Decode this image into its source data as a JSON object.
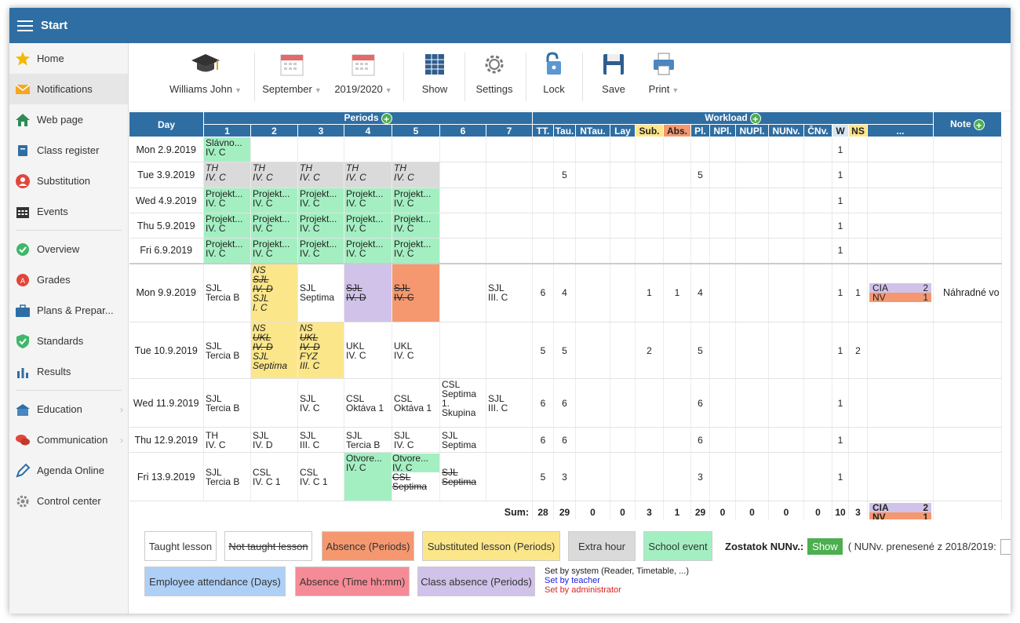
{
  "app": {
    "title": "Start"
  },
  "sidebar": [
    {
      "label": "Home",
      "icon": "star-icon"
    },
    {
      "label": "Notifications",
      "icon": "envelope-icon"
    },
    {
      "label": "Web page",
      "icon": "house-icon"
    },
    {
      "label": "Class register",
      "icon": "book-icon"
    },
    {
      "label": "Substitution",
      "icon": "person-swap-icon"
    },
    {
      "label": "Events",
      "icon": "calendar-icon"
    },
    {
      "label": "Overview",
      "icon": "check-circle-icon"
    },
    {
      "label": "Grades",
      "icon": "grade-circle-icon"
    },
    {
      "label": "Plans & Prepar...",
      "icon": "briefcase-icon"
    },
    {
      "label": "Standards",
      "icon": "shield-check-icon"
    },
    {
      "label": "Results",
      "icon": "bar-chart-icon"
    },
    {
      "label": "Education",
      "icon": "school-icon"
    },
    {
      "label": "Communication",
      "icon": "chat-icon"
    },
    {
      "label": "Agenda Online",
      "icon": "pen-icon"
    },
    {
      "label": "Control center",
      "icon": "gear-icon"
    }
  ],
  "toolbar": {
    "teacher": "Williams John",
    "month": "September",
    "year": "2019/2020",
    "show": "Show",
    "settings": "Settings",
    "lock": "Lock",
    "save": "Save",
    "print": "Print"
  },
  "headers": {
    "day": "Day",
    "periods": "Periods",
    "workload": "Workload",
    "note": "Note",
    "period_numbers": [
      "1",
      "2",
      "3",
      "4",
      "5",
      "6",
      "7"
    ],
    "workload_cols": [
      "TT.",
      "Tau.",
      "NTau.",
      "Lay",
      "Sub.",
      "Abs.",
      "Pl.",
      "NPl.",
      "NUPl.",
      "NUNv.",
      "ČNv.",
      "W",
      "NS",
      "..."
    ]
  },
  "rows": [
    {
      "day": "Mon 2.9.2019",
      "periods": [
        {
          "lines": [
            "Slávno...",
            "IV. C"
          ],
          "style": "ev"
        },
        {},
        {},
        {},
        {},
        {},
        {}
      ],
      "w": [
        "",
        "",
        "",
        "",
        "",
        "",
        "",
        "",
        "",
        "",
        "",
        "1",
        "",
        ""
      ],
      "note": ""
    },
    {
      "day": "Tue 3.9.2019",
      "periods": [
        {
          "lines": [
            "TH",
            "IV. C"
          ],
          "style": "xh",
          "italic": true
        },
        {
          "lines": [
            "TH",
            "IV. C"
          ],
          "style": "xh",
          "italic": true
        },
        {
          "lines": [
            "TH",
            "IV. C"
          ],
          "style": "xh",
          "italic": true
        },
        {
          "lines": [
            "TH",
            "IV. C"
          ],
          "style": "xh",
          "italic": true
        },
        {
          "lines": [
            "TH",
            "IV. C"
          ],
          "style": "xh",
          "italic": true
        },
        {},
        {}
      ],
      "w": [
        "",
        "5",
        "",
        "",
        "",
        "",
        "5",
        "",
        "",
        "",
        "",
        "1",
        "",
        ""
      ],
      "note": ""
    },
    {
      "day": "Wed 4.9.2019",
      "periods": [
        {
          "lines": [
            "Projekt...",
            "IV. C"
          ],
          "style": "ev"
        },
        {
          "lines": [
            "Projekt...",
            "IV. C"
          ],
          "style": "ev"
        },
        {
          "lines": [
            "Projekt...",
            "IV. C"
          ],
          "style": "ev"
        },
        {
          "lines": [
            "Projekt...",
            "IV. C"
          ],
          "style": "ev"
        },
        {
          "lines": [
            "Projekt...",
            "IV. C"
          ],
          "style": "ev"
        },
        {},
        {}
      ],
      "w": [
        "",
        "",
        "",
        "",
        "",
        "",
        "",
        "",
        "",
        "",
        "",
        "1",
        "",
        ""
      ],
      "note": ""
    },
    {
      "day": "Thu 5.9.2019",
      "periods": [
        {
          "lines": [
            "Projekt...",
            "IV. C"
          ],
          "style": "ev"
        },
        {
          "lines": [
            "Projekt...",
            "IV. C"
          ],
          "style": "ev"
        },
        {
          "lines": [
            "Projekt...",
            "IV. C"
          ],
          "style": "ev"
        },
        {
          "lines": [
            "Projekt...",
            "IV. C"
          ],
          "style": "ev"
        },
        {
          "lines": [
            "Projekt...",
            "IV. C"
          ],
          "style": "ev"
        },
        {},
        {}
      ],
      "w": [
        "",
        "",
        "",
        "",
        "",
        "",
        "",
        "",
        "",
        "",
        "",
        "1",
        "",
        ""
      ],
      "note": ""
    },
    {
      "day": "Fri 6.9.2019",
      "periods": [
        {
          "lines": [
            "Projekt...",
            "IV. C"
          ],
          "style": "ev"
        },
        {
          "lines": [
            "Projekt...",
            "IV. C"
          ],
          "style": "ev"
        },
        {
          "lines": [
            "Projekt...",
            "IV. C"
          ],
          "style": "ev"
        },
        {
          "lines": [
            "Projekt...",
            "IV. C"
          ],
          "style": "ev"
        },
        {
          "lines": [
            "Projekt...",
            "IV. C"
          ],
          "style": "ev"
        },
        {},
        {}
      ],
      "w": [
        "",
        "",
        "",
        "",
        "",
        "",
        "",
        "",
        "",
        "",
        "",
        "1",
        "",
        ""
      ],
      "note": ""
    },
    {
      "day": "Mon 9.9.2019",
      "periods": [
        {
          "lines": [
            "SJL",
            "Tercia B"
          ]
        },
        {
          "lines": [
            "NS",
            "SJL",
            "IV. D",
            "SJL",
            "I. C"
          ],
          "style": "sub",
          "italic": true,
          "strike": [
            1,
            2
          ]
        },
        {
          "lines": [
            "SJL",
            "Septima"
          ]
        },
        {
          "lines": [
            "SJL",
            "IV. D"
          ],
          "style": "ca",
          "strike": [
            0,
            1
          ]
        },
        {
          "lines": [
            "SJL",
            "IV. C"
          ],
          "style": "ab",
          "strike": [
            0,
            1
          ]
        },
        {},
        {
          "lines": [
            "SJL",
            "III. C"
          ]
        }
      ],
      "w": [
        "6",
        "4",
        "",
        "",
        "1",
        "1",
        "4",
        "",
        "",
        "",
        "",
        "1",
        "1",
        "cia"
      ],
      "note": "Náhradné vo"
    },
    {
      "day": "Tue 10.9.2019",
      "periods": [
        {
          "lines": [
            "SJL",
            "Tercia B"
          ]
        },
        {
          "lines": [
            "NS",
            "UKL",
            "IV. D",
            "SJL",
            "Septima"
          ],
          "style": "sub",
          "italic": true,
          "strike": [
            1,
            2
          ]
        },
        {
          "lines": [
            "NS",
            "UKL",
            "IV. D",
            "FYZ",
            "III. C"
          ],
          "style": "sub",
          "italic": true,
          "strike": [
            1,
            2
          ]
        },
        {
          "lines": [
            "UKL",
            "IV. C"
          ]
        },
        {
          "lines": [
            "UKL",
            "IV. C"
          ]
        },
        {},
        {}
      ],
      "w": [
        "5",
        "5",
        "",
        "",
        "2",
        "",
        "5",
        "",
        "",
        "",
        "",
        "1",
        "2",
        ""
      ],
      "note": ""
    },
    {
      "day": "Wed 11.9.2019",
      "periods": [
        {
          "lines": [
            "SJL",
            "Tercia B"
          ]
        },
        {},
        {
          "lines": [
            "SJL",
            "IV. C"
          ]
        },
        {
          "lines": [
            "CSL",
            "Oktáva 1"
          ]
        },
        {
          "lines": [
            "CSL",
            "Oktáva 1"
          ]
        },
        {
          "lines": [
            "CSL",
            "Septima",
            "1.",
            "Skupina"
          ]
        },
        {
          "lines": [
            "SJL",
            "III. C"
          ]
        }
      ],
      "w": [
        "6",
        "6",
        "",
        "",
        "",
        "",
        "6",
        "",
        "",
        "",
        "",
        "1",
        "",
        ""
      ],
      "note": ""
    },
    {
      "day": "Thu 12.9.2019",
      "periods": [
        {
          "lines": [
            "TH",
            "IV. C"
          ]
        },
        {
          "lines": [
            "SJL",
            "IV. D"
          ]
        },
        {
          "lines": [
            "SJL",
            "III. C"
          ]
        },
        {
          "lines": [
            "SJL",
            "Tercia B"
          ]
        },
        {
          "lines": [
            "SJL",
            "IV. C"
          ]
        },
        {
          "lines": [
            "SJL",
            "Septima"
          ]
        },
        {}
      ],
      "w": [
        "6",
        "6",
        "",
        "",
        "",
        "",
        "6",
        "",
        "",
        "",
        "",
        "1",
        "",
        ""
      ],
      "note": ""
    },
    {
      "day": "Fri 13.9.2019",
      "periods": [
        {
          "lines": [
            "SJL",
            "Tercia B"
          ]
        },
        {
          "lines": [
            "CSL",
            "IV. C 1"
          ]
        },
        {
          "lines": [
            "CSL",
            "IV. C 1"
          ]
        },
        {
          "lines": [
            "Otvore...",
            "IV. C"
          ],
          "style": "ev"
        },
        {
          "lines": [
            "Otvore...",
            "IV. C",
            "CSL",
            "Septima"
          ],
          "mixed": true,
          "strike": [
            2,
            3
          ]
        },
        {
          "lines": [
            "SJL",
            "Septima"
          ],
          "strike": [
            0,
            1
          ]
        },
        {}
      ],
      "w": [
        "5",
        "3",
        "",
        "",
        "",
        "",
        "3",
        "",
        "",
        "",
        "",
        "1",
        "",
        ""
      ],
      "note": ""
    }
  ],
  "cia": {
    "cia_label": "CIA",
    "cia_val": "2",
    "nv_label": "NV",
    "nv_val": "1"
  },
  "sum": {
    "label": "Sum:",
    "values": [
      "28",
      "29",
      "0",
      "0",
      "3",
      "1",
      "29",
      "0",
      "0",
      "0",
      "0",
      "10",
      "3"
    ]
  },
  "legend": {
    "taught": "Taught lesson",
    "not_taught": "Not taught lesson",
    "absence": "Absence (Periods)",
    "substituted": "Substituted lesson (Periods)",
    "extra": "Extra hour",
    "event": "School event",
    "employee": "Employee attendance (Days)",
    "abs_time": "Absence (Time hh:mm)",
    "class_abs": "Class absence (Periods)",
    "set_system": "Set by system (Reader, Timetable, ...)",
    "set_teacher": "Set by teacher",
    "set_admin": "Set by administrator",
    "zostatok": "Zostatok NUNv.:",
    "show_btn": "Show",
    "nunv_prev": "( NUNv. prenesené z 2018/2019:",
    "nunv_val": "0"
  },
  "colors": {
    "header": "#2F6EA3",
    "event": "#A4EFC2",
    "extra": "#DADADA",
    "substituted": "#FBE68A",
    "absence": "#F5986F",
    "class_absence": "#D0C2E8",
    "employee": "#AED0F7",
    "abs_time": "#F58B96"
  }
}
